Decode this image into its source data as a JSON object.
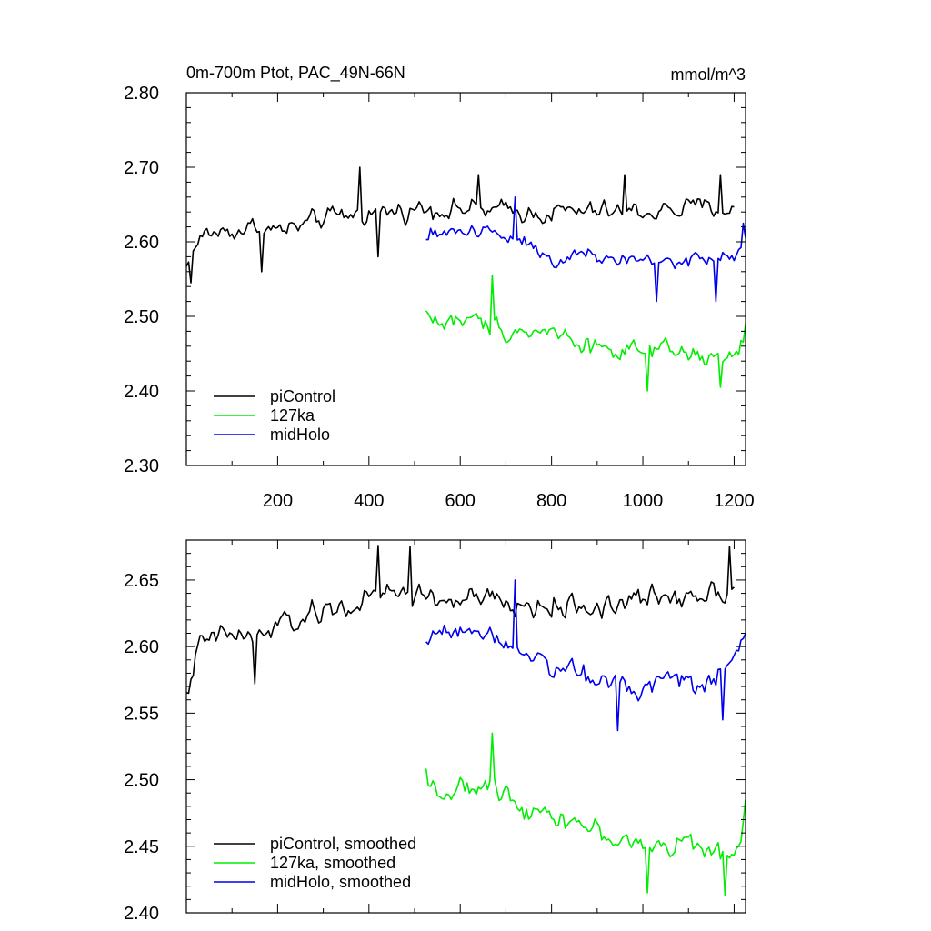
{
  "chart_data": [
    {
      "type": "line",
      "title": "0m-700m Ptot, PAC_49N-66N",
      "units": "mmol/m^3",
      "xlim": [
        0,
        1225
      ],
      "ylim": [
        2.3,
        2.8
      ],
      "x_ticks": [
        200,
        400,
        600,
        800,
        1000,
        1200
      ],
      "y_ticks": [
        "2.30",
        "2.40",
        "2.50",
        "2.60",
        "2.70",
        "2.80"
      ],
      "grid": false,
      "legend_position": "bottom-left",
      "series": [
        {
          "name": "piControl",
          "color": "#000000",
          "x_start": 0,
          "x_end": 1200,
          "anchors": [
            [
              0,
              2.565
            ],
            [
              20,
              2.595
            ],
            [
              40,
              2.61
            ],
            [
              100,
              2.615
            ],
            [
              150,
              2.62
            ],
            [
              200,
              2.615
            ],
            [
              250,
              2.62
            ],
            [
              300,
              2.63
            ],
            [
              350,
              2.635
            ],
            [
              400,
              2.64
            ],
            [
              450,
              2.64
            ],
            [
              500,
              2.645
            ],
            [
              550,
              2.645
            ],
            [
              600,
              2.645
            ],
            [
              700,
              2.64
            ],
            [
              800,
              2.64
            ],
            [
              900,
              2.64
            ],
            [
              1000,
              2.64
            ],
            [
              1100,
              2.645
            ],
            [
              1200,
              2.645
            ]
          ],
          "noise": 0.022,
          "extremes": [
            [
              10,
              2.545
            ],
            [
              165,
              2.56
            ],
            [
              380,
              2.7
            ],
            [
              420,
              2.58
            ],
            [
              640,
              2.69
            ],
            [
              960,
              2.69
            ],
            [
              1170,
              2.69
            ]
          ]
        },
        {
          "name": "127ka",
          "color": "#00ee00",
          "x_start": 525,
          "x_end": 1225,
          "anchors": [
            [
              525,
              2.505
            ],
            [
              560,
              2.49
            ],
            [
              600,
              2.495
            ],
            [
              650,
              2.49
            ],
            [
              700,
              2.485
            ],
            [
              750,
              2.48
            ],
            [
              800,
              2.48
            ],
            [
              850,
              2.47
            ],
            [
              900,
              2.46
            ],
            [
              950,
              2.455
            ],
            [
              1000,
              2.45
            ],
            [
              1050,
              2.45
            ],
            [
              1100,
              2.45
            ],
            [
              1150,
              2.44
            ],
            [
              1200,
              2.445
            ],
            [
              1225,
              2.47
            ]
          ],
          "noise": 0.022,
          "extremes": [
            [
              670,
              2.555
            ],
            [
              1010,
              2.4
            ],
            [
              1170,
              2.405
            ],
            [
              1225,
              2.49
            ]
          ]
        },
        {
          "name": "midHolo",
          "color": "#0000ee",
          "x_start": 525,
          "x_end": 1225,
          "anchors": [
            [
              525,
              2.6
            ],
            [
              560,
              2.615
            ],
            [
              600,
              2.615
            ],
            [
              650,
              2.615
            ],
            [
              700,
              2.61
            ],
            [
              750,
              2.6
            ],
            [
              800,
              2.58
            ],
            [
              850,
              2.58
            ],
            [
              900,
              2.58
            ],
            [
              950,
              2.575
            ],
            [
              1000,
              2.575
            ],
            [
              1050,
              2.575
            ],
            [
              1100,
              2.575
            ],
            [
              1150,
              2.575
            ],
            [
              1200,
              2.585
            ],
            [
              1225,
              2.6
            ]
          ],
          "noise": 0.02,
          "extremes": [
            [
              720,
              2.66
            ],
            [
              1030,
              2.52
            ],
            [
              1160,
              2.52
            ],
            [
              1220,
              2.625
            ]
          ]
        }
      ]
    },
    {
      "type": "line",
      "xlim": [
        0,
        1225
      ],
      "ylim": [
        2.4,
        2.68
      ],
      "y_ticks": [
        "2.40",
        "2.45",
        "2.50",
        "2.55",
        "2.60",
        "2.65"
      ],
      "grid": false,
      "legend_position": "bottom-left",
      "series": [
        {
          "name": "piControl, smoothed",
          "color": "#000000",
          "x_start": 0,
          "x_end": 1200,
          "anchors": [
            [
              0,
              2.57
            ],
            [
              30,
              2.6
            ],
            [
              60,
              2.605
            ],
            [
              100,
              2.61
            ],
            [
              150,
              2.605
            ],
            [
              200,
              2.615
            ],
            [
              250,
              2.62
            ],
            [
              300,
              2.625
            ],
            [
              350,
              2.63
            ],
            [
              400,
              2.635
            ],
            [
              450,
              2.64
            ],
            [
              500,
              2.64
            ],
            [
              550,
              2.635
            ],
            [
              600,
              2.635
            ],
            [
              650,
              2.635
            ],
            [
              700,
              2.63
            ],
            [
              800,
              2.63
            ],
            [
              900,
              2.63
            ],
            [
              1000,
              2.635
            ],
            [
              1100,
              2.64
            ],
            [
              1200,
              2.645
            ]
          ],
          "noise": 0.015,
          "extremes": [
            [
              5,
              2.565
            ],
            [
              150,
              2.572
            ],
            [
              420,
              2.676
            ],
            [
              490,
              2.675
            ],
            [
              1190,
              2.675
            ]
          ]
        },
        {
          "name": "127ka, smoothed",
          "color": "#00ee00",
          "x_start": 525,
          "x_end": 1225,
          "anchors": [
            [
              525,
              2.505
            ],
            [
              560,
              2.49
            ],
            [
              600,
              2.49
            ],
            [
              650,
              2.495
            ],
            [
              700,
              2.49
            ],
            [
              750,
              2.48
            ],
            [
              800,
              2.475
            ],
            [
              850,
              2.47
            ],
            [
              900,
              2.46
            ],
            [
              950,
              2.455
            ],
            [
              1000,
              2.45
            ],
            [
              1050,
              2.45
            ],
            [
              1100,
              2.455
            ],
            [
              1150,
              2.44
            ],
            [
              1200,
              2.445
            ],
            [
              1225,
              2.48
            ]
          ],
          "noise": 0.013,
          "extremes": [
            [
              670,
              2.535
            ],
            [
              1010,
              2.415
            ],
            [
              1180,
              2.413
            ],
            [
              1225,
              2.485
            ]
          ]
        },
        {
          "name": "midHolo, smoothed",
          "color": "#0000ee",
          "x_start": 525,
          "x_end": 1225,
          "anchors": [
            [
              525,
              2.6
            ],
            [
              560,
              2.615
            ],
            [
              600,
              2.615
            ],
            [
              650,
              2.61
            ],
            [
              700,
              2.605
            ],
            [
              750,
              2.6
            ],
            [
              800,
              2.585
            ],
            [
              850,
              2.58
            ],
            [
              900,
              2.575
            ],
            [
              950,
              2.575
            ],
            [
              1000,
              2.57
            ],
            [
              1050,
              2.58
            ],
            [
              1100,
              2.575
            ],
            [
              1150,
              2.575
            ],
            [
              1200,
              2.585
            ],
            [
              1225,
              2.605
            ]
          ],
          "noise": 0.013,
          "extremes": [
            [
              720,
              2.65
            ],
            [
              945,
              2.537
            ],
            [
              1175,
              2.545
            ],
            [
              1225,
              2.61
            ]
          ]
        }
      ]
    }
  ]
}
